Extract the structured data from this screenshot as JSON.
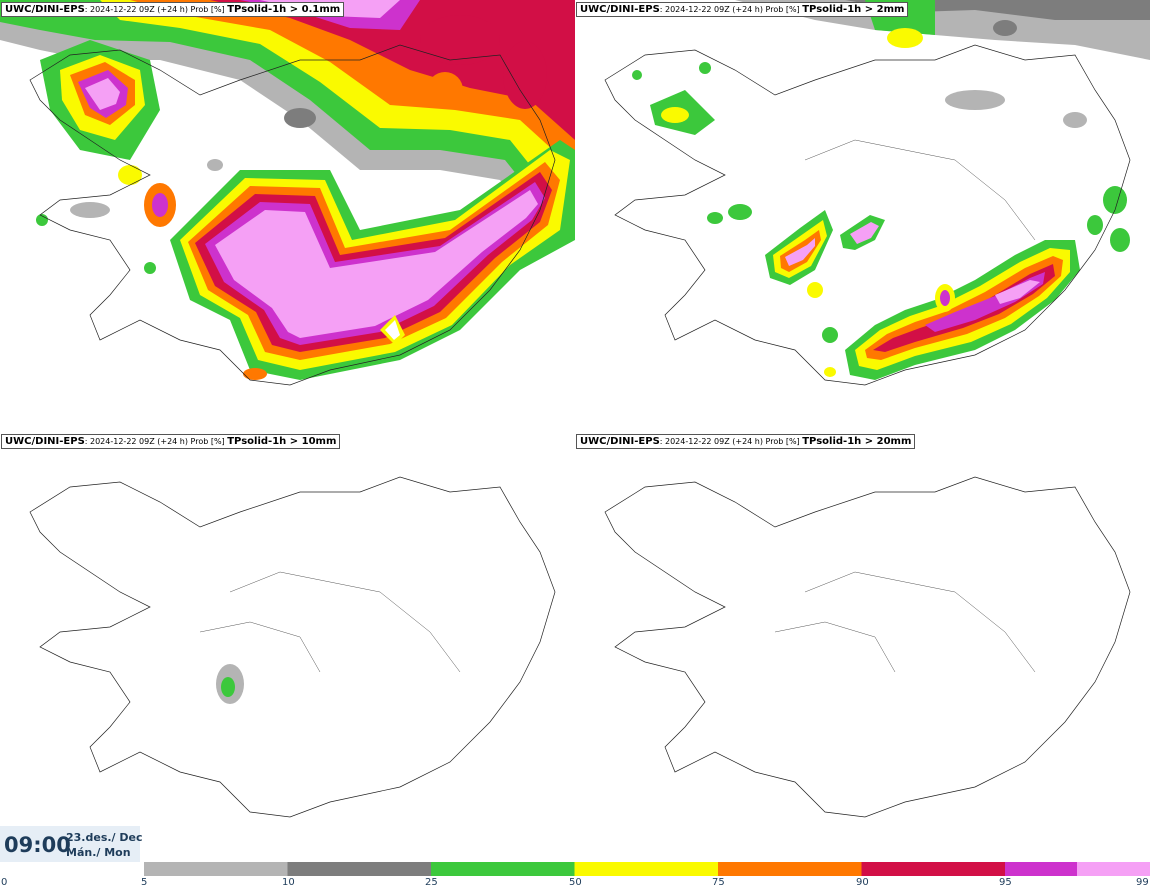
{
  "panels": [
    {
      "model": "UWC/DINI-EPS",
      "run": ": 2024-12-22 09Z (+24 h) Prob [%] ",
      "variable": "TPsolid-1h > 0.1mm"
    },
    {
      "model": "UWC/DINI-EPS",
      "run": ": 2024-12-22 09Z (+24 h) Prob [%] ",
      "variable": "TPsolid-1h > 2mm"
    },
    {
      "model": "UWC/DINI-EPS",
      "run": ": 2024-12-22 09Z (+24 h) Prob [%] ",
      "variable": "TPsolid-1h > 10mm"
    },
    {
      "model": "UWC/DINI-EPS",
      "run": ": 2024-12-22 09Z (+24 h) Prob [%] ",
      "variable": "TPsolid-1h > 20mm"
    }
  ],
  "footer": {
    "time": "09:00",
    "date": "23.des./ Dec",
    "weekday": "Mán./ Mon"
  },
  "legend": {
    "ticks": [
      "0",
      "5",
      "10",
      "25",
      "50",
      "75",
      "90",
      "95",
      "99"
    ],
    "colors": [
      "#ffffff",
      "#b4b4b4",
      "#7d7d7d",
      "#3cc83c",
      "#fafa00",
      "#ff7800",
      "#d20f46",
      "#cd32cd",
      "#f5a0f5"
    ]
  },
  "probability_colors": {
    "p5": "#b4b4b4",
    "p10": "#7d7d7d",
    "p25": "#3cc83c",
    "p50": "#fafa00",
    "p75": "#ff7800",
    "p90": "#d20f46",
    "p95": "#cd32cd",
    "p99": "#f5a0f5"
  }
}
